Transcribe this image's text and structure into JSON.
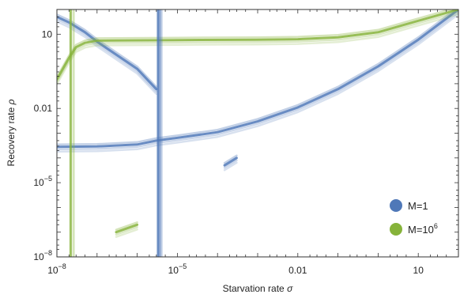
{
  "chart_data": {
    "type": "line",
    "title": "",
    "xlabel": "Starvation rate",
    "xlabel_symbol": "σ",
    "ylabel": "Recovery rate",
    "ylabel_symbol": "ρ",
    "xscale": "log",
    "yscale": "log",
    "xlim": [
      1e-08,
      100
    ],
    "ylim": [
      1e-08,
      100
    ],
    "x_ticks": [
      {
        "value": 1e-08,
        "base": "10",
        "exp": "−8"
      },
      {
        "value": 1e-05,
        "base": "10",
        "exp": "−5"
      },
      {
        "value": 0.01,
        "text": "0.01"
      },
      {
        "value": 10,
        "text": "10"
      }
    ],
    "y_ticks": [
      {
        "value": 1e-08,
        "base": "10",
        "exp": "−8"
      },
      {
        "value": 1e-05,
        "base": "10",
        "exp": "−5"
      },
      {
        "value": 0.01,
        "text": "0.01"
      },
      {
        "value": 10,
        "text": "10"
      }
    ],
    "grid": false,
    "legend_position": "bottom-right",
    "legend": [
      {
        "label": "M=1",
        "color": "#4f78b8"
      },
      {
        "label": "M=10",
        "superscript": "6",
        "color": "#86b33a"
      }
    ],
    "series": [
      {
        "group": "M=1",
        "color": "#4f78b8",
        "x": [
          1e-08,
          1e-07,
          1e-06,
          3e-06,
          1e-05,
          0.0001,
          0.001,
          0.01,
          0.1,
          1,
          10,
          100
        ],
        "y": [
          0.00028,
          0.00029,
          0.00035,
          0.0005,
          0.00065,
          0.0011,
          0.003,
          0.011,
          0.06,
          0.5,
          6,
          100
        ]
      },
      {
        "group": "M=1",
        "color": "#4f78b8",
        "x": [
          1e-08,
          2e-08,
          5e-08,
          1e-07,
          3e-07,
          1e-06,
          3e-06
        ],
        "y": [
          50,
          30,
          12,
          5,
          1.5,
          0.4,
          0.06
        ]
      },
      {
        "group": "M=1",
        "color": "#4f78b8",
        "x": [
          0.00015,
          0.0003
        ],
        "y": [
          5e-05,
          0.0001
        ]
      },
      {
        "group": "M=10^6",
        "color": "#86b33a",
        "x": [
          1e-08,
          2e-08,
          3e-08,
          5e-08,
          1e-07,
          1e-05,
          0.001,
          0.01,
          0.1,
          1,
          10,
          100
        ],
        "y": [
          0.15,
          1.1,
          3,
          4.5,
          5.5,
          5.8,
          6,
          6.3,
          7.5,
          12,
          35,
          100
        ]
      },
      {
        "group": "M=10^6",
        "color": "#86b33a",
        "x": [
          3e-07,
          1e-06
        ],
        "y": [
          1e-07,
          2e-07
        ]
      }
    ],
    "vertical_lines": [
      {
        "group": "M=1",
        "color": "#4f78b8",
        "x": [
          3.3e-06,
          3.5e-06,
          3.7e-06,
          4e-06
        ]
      },
      {
        "group": "M=10^6",
        "color": "#86b33a",
        "x": [
          2.2e-08,
          2.6e-08
        ]
      }
    ]
  }
}
